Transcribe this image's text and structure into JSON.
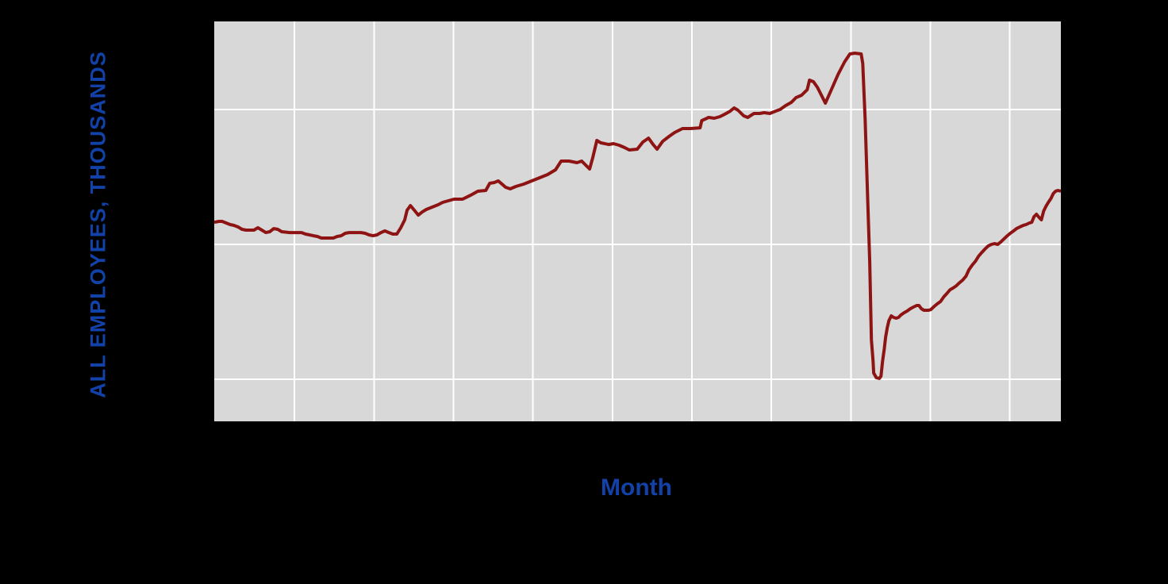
{
  "page": {
    "background_color": "#000000"
  },
  "chart": {
    "y_axis_label": "ALL EMPLOYEES, THOUSANDS",
    "x_axis_label": "Month",
    "label_color": "#1241a8",
    "plot_background_color": "#d8d8d8",
    "gridline_color": "#ffffff",
    "line_color": "#8e1414",
    "line_width": 4,
    "gridline_width": 2
  },
  "chart_data": {
    "type": "line",
    "title": "",
    "xlabel": "Month",
    "ylabel": "ALL EMPLOYEES, THOUSANDS",
    "x_unit": "month_index",
    "xlim": [
      0,
      256
    ],
    "ylim": [
      11377,
      17306
    ],
    "grid": true,
    "legend_position": "none",
    "x_gridlines": [
      24.2,
      48.3,
      72.3,
      96.3,
      120.4,
      144.4,
      168.4,
      192.5,
      216.5,
      240.5
    ],
    "y_gridlines": [
      16000,
      14000,
      12000
    ],
    "tick_labels_visible": false,
    "series": [
      {
        "name": "All Employees, Thousands",
        "points": [
          [
            0,
            14329
          ],
          [
            1.4,
            14341
          ],
          [
            2.4,
            14341
          ],
          [
            3.6,
            14318
          ],
          [
            4.8,
            14294
          ],
          [
            6,
            14282
          ],
          [
            7.2,
            14259
          ],
          [
            8.4,
            14224
          ],
          [
            9.6,
            14212
          ],
          [
            12,
            14212
          ],
          [
            13.2,
            14247
          ],
          [
            14.4,
            14212
          ],
          [
            15.6,
            14176
          ],
          [
            16.8,
            14188
          ],
          [
            18,
            14235
          ],
          [
            19.2,
            14224
          ],
          [
            20.4,
            14188
          ],
          [
            22.8,
            14176
          ],
          [
            26.4,
            14176
          ],
          [
            27.6,
            14153
          ],
          [
            28.8,
            14141
          ],
          [
            30,
            14129
          ],
          [
            31.2,
            14118
          ],
          [
            32.4,
            14094
          ],
          [
            36,
            14094
          ],
          [
            37.2,
            14118
          ],
          [
            38.4,
            14129
          ],
          [
            39.6,
            14165
          ],
          [
            40.8,
            14176
          ],
          [
            44.4,
            14176
          ],
          [
            45.6,
            14165
          ],
          [
            46.8,
            14141
          ],
          [
            48,
            14129
          ],
          [
            49.2,
            14141
          ],
          [
            50.4,
            14176
          ],
          [
            51.6,
            14200
          ],
          [
            52.8,
            14176
          ],
          [
            54,
            14153
          ],
          [
            55.2,
            14153
          ],
          [
            56.4,
            14247
          ],
          [
            57.6,
            14365
          ],
          [
            58.3,
            14506
          ],
          [
            59.3,
            14576
          ],
          [
            60.5,
            14506
          ],
          [
            61.7,
            14435
          ],
          [
            62.9,
            14482
          ],
          [
            64.1,
            14518
          ],
          [
            65.3,
            14541
          ],
          [
            66.5,
            14565
          ],
          [
            67.7,
            14588
          ],
          [
            69.1,
            14624
          ],
          [
            70.8,
            14647
          ],
          [
            72.5,
            14671
          ],
          [
            75.1,
            14671
          ],
          [
            77.5,
            14729
          ],
          [
            79.7,
            14788
          ],
          [
            82.1,
            14800
          ],
          [
            83.3,
            14906
          ],
          [
            84.7,
            14918
          ],
          [
            85.9,
            14941
          ],
          [
            88.1,
            14847
          ],
          [
            89.5,
            14824
          ],
          [
            91.2,
            14859
          ],
          [
            93.6,
            14894
          ],
          [
            96,
            14941
          ],
          [
            98.4,
            14988
          ],
          [
            100.8,
            15035
          ],
          [
            103.2,
            15106
          ],
          [
            104.9,
            15235
          ],
          [
            107.3,
            15235
          ],
          [
            109.7,
            15212
          ],
          [
            111.1,
            15235
          ],
          [
            112.8,
            15153
          ],
          [
            113.5,
            15118
          ],
          [
            114.5,
            15294
          ],
          [
            115.7,
            15541
          ],
          [
            116.9,
            15506
          ],
          [
            119.3,
            15482
          ],
          [
            120.7,
            15494
          ],
          [
            122.4,
            15471
          ],
          [
            124.1,
            15435
          ],
          [
            125.5,
            15400
          ],
          [
            127.9,
            15412
          ],
          [
            129.6,
            15518
          ],
          [
            131.3,
            15576
          ],
          [
            132.7,
            15482
          ],
          [
            133.9,
            15412
          ],
          [
            135.6,
            15529
          ],
          [
            137.5,
            15600
          ],
          [
            139.2,
            15659
          ],
          [
            141.6,
            15718
          ],
          [
            144,
            15718
          ],
          [
            146.9,
            15729
          ],
          [
            147.4,
            15835
          ],
          [
            149.5,
            15882
          ],
          [
            151.2,
            15871
          ],
          [
            152.9,
            15894
          ],
          [
            154.3,
            15929
          ],
          [
            156,
            15976
          ],
          [
            157.2,
            16024
          ],
          [
            158.4,
            15988
          ],
          [
            160.1,
            15906
          ],
          [
            161.3,
            15882
          ],
          [
            163.2,
            15941
          ],
          [
            164.9,
            15941
          ],
          [
            166.3,
            15953
          ],
          [
            168,
            15941
          ],
          [
            169.7,
            15976
          ],
          [
            171.1,
            16000
          ],
          [
            172.8,
            16059
          ],
          [
            174.5,
            16106
          ],
          [
            175.9,
            16176
          ],
          [
            177.6,
            16212
          ],
          [
            179.3,
            16294
          ],
          [
            180,
            16435
          ],
          [
            181.2,
            16412
          ],
          [
            182.4,
            16329
          ],
          [
            183.6,
            16212
          ],
          [
            184.8,
            16094
          ],
          [
            186.7,
            16306
          ],
          [
            188.6,
            16518
          ],
          [
            190.6,
            16706
          ],
          [
            192.2,
            16824
          ],
          [
            193.7,
            16835
          ],
          [
            195.6,
            16824
          ],
          [
            196.1,
            16682
          ],
          [
            196.8,
            15859
          ],
          [
            197.3,
            15118
          ],
          [
            197.8,
            14353
          ],
          [
            198.2,
            13741
          ],
          [
            198.5,
            13071
          ],
          [
            198.7,
            12588
          ],
          [
            199.2,
            12271
          ],
          [
            199.4,
            12094
          ],
          [
            200.2,
            12024
          ],
          [
            201.1,
            12012
          ],
          [
            201.6,
            12047
          ],
          [
            202.1,
            12271
          ],
          [
            202.6,
            12447
          ],
          [
            203,
            12624
          ],
          [
            203.5,
            12765
          ],
          [
            204,
            12871
          ],
          [
            204.7,
            12941
          ],
          [
            205.4,
            12918
          ],
          [
            206.2,
            12906
          ],
          [
            206.9,
            12918
          ],
          [
            207.6,
            12953
          ],
          [
            208.6,
            12988
          ],
          [
            209.5,
            13012
          ],
          [
            210.5,
            13047
          ],
          [
            211.4,
            13071
          ],
          [
            212.4,
            13094
          ],
          [
            213.1,
            13094
          ],
          [
            213.8,
            13047
          ],
          [
            214.6,
            13024
          ],
          [
            215.3,
            13024
          ],
          [
            216,
            13024
          ],
          [
            216.7,
            13035
          ],
          [
            217.7,
            13082
          ],
          [
            218.6,
            13118
          ],
          [
            219.6,
            13153
          ],
          [
            220.6,
            13224
          ],
          [
            221.5,
            13271
          ],
          [
            222.5,
            13329
          ],
          [
            223.4,
            13353
          ],
          [
            224.4,
            13388
          ],
          [
            225.4,
            13435
          ],
          [
            226.3,
            13471
          ],
          [
            227.3,
            13529
          ],
          [
            228.2,
            13624
          ],
          [
            229.2,
            13694
          ],
          [
            230.2,
            13753
          ],
          [
            231.1,
            13824
          ],
          [
            232.1,
            13882
          ],
          [
            233,
            13929
          ],
          [
            234,
            13976
          ],
          [
            235,
            14000
          ],
          [
            235.9,
            14012
          ],
          [
            236.9,
            14000
          ],
          [
            237.8,
            14035
          ],
          [
            238.8,
            14082
          ],
          [
            239.8,
            14129
          ],
          [
            240.7,
            14165
          ],
          [
            241.7,
            14200
          ],
          [
            242.6,
            14235
          ],
          [
            243.6,
            14259
          ],
          [
            244.6,
            14282
          ],
          [
            245.5,
            14294
          ],
          [
            246.5,
            14318
          ],
          [
            247.2,
            14329
          ],
          [
            247.9,
            14412
          ],
          [
            248.6,
            14447
          ],
          [
            249.4,
            14400
          ],
          [
            250.1,
            14365
          ],
          [
            250.8,
            14494
          ],
          [
            251.5,
            14565
          ],
          [
            252.2,
            14624
          ],
          [
            253,
            14682
          ],
          [
            253.7,
            14753
          ],
          [
            254.4,
            14788
          ],
          [
            255.1,
            14800
          ],
          [
            256,
            14788
          ]
        ]
      }
    ]
  }
}
